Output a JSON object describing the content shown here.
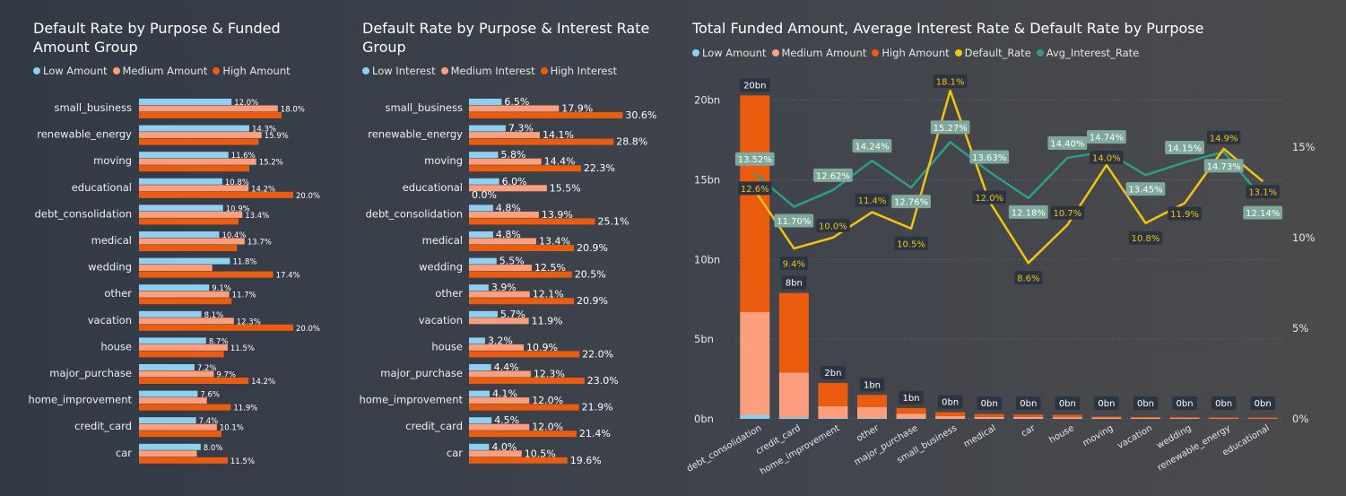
{
  "colors": {
    "low": "#8fd0f0",
    "medium": "#fc9f7e",
    "high": "#eb5c0f",
    "default_rate": "#f2c40f",
    "avg_interest": "#2d9d88",
    "label_box": "#2b3440",
    "interest_box": "#7fa89c"
  },
  "chart_data": [
    {
      "type": "bar",
      "orientation": "horizontal",
      "title": "Default Rate by Purpose & Funded Amount Group",
      "categories": [
        "small_business",
        "renewable_energy",
        "moving",
        "educational",
        "debt_consolidation",
        "medical",
        "wedding",
        "other",
        "vacation",
        "house",
        "major_purchase",
        "home_improvement",
        "credit_card",
        "car"
      ],
      "series": [
        {
          "name": "Low Amount",
          "values": [
            12.0,
            14.3,
            11.6,
            10.8,
            10.9,
            10.4,
            11.8,
            9.1,
            8.1,
            8.7,
            7.2,
            7.6,
            7.4,
            8.0
          ],
          "labels": [
            "12.0%",
            "14.3%",
            "11.6%",
            "10.8%",
            "10.9%",
            "10.4%",
            "11.8%",
            "9.1%",
            "8.1%",
            "8.7%",
            "7.2%",
            "7.6%",
            "7.4%",
            "8.0%"
          ]
        },
        {
          "name": "Medium Amount",
          "values": [
            18.0,
            15.9,
            15.2,
            14.2,
            13.4,
            13.7,
            9.5,
            11.7,
            12.3,
            11.5,
            9.7,
            8.8,
            10.1,
            7.5
          ],
          "labels": [
            "18.0%",
            "15.9%",
            "15.2%",
            "14.2%",
            "13.4%",
            "13.7%",
            "",
            "11.7%",
            "12.3%",
            "11.5%",
            "9.7%",
            "",
            "10.1%",
            ""
          ]
        },
        {
          "name": "High Amount",
          "values": [
            18.5,
            15.5,
            14.3,
            20.0,
            12.9,
            12.7,
            17.4,
            12.0,
            20.0,
            11.0,
            14.2,
            11.9,
            10.7,
            11.5
          ],
          "labels": [
            "",
            "",
            "",
            "20.0%",
            "",
            "",
            "17.4%",
            "",
            "20.0%",
            "",
            "14.2%",
            "11.9%",
            "",
            "11.5%"
          ]
        }
      ]
    },
    {
      "type": "bar",
      "orientation": "horizontal",
      "title": "Default Rate by Purpose & Interest Rate Group",
      "categories": [
        "small_business",
        "renewable_energy",
        "moving",
        "educational",
        "debt_consolidation",
        "medical",
        "wedding",
        "other",
        "vacation",
        "house",
        "major_purchase",
        "home_improvement",
        "credit_card",
        "car"
      ],
      "series": [
        {
          "name": "Low Interest",
          "values": [
            6.5,
            7.3,
            5.8,
            6.0,
            4.8,
            4.8,
            5.5,
            3.9,
            5.7,
            3.2,
            4.4,
            4.1,
            4.5,
            4.0
          ],
          "labels": [
            "6.5%",
            "7.3%",
            "5.8%",
            "6.0%",
            "4.8%",
            "4.8%",
            "5.5%",
            "3.9%",
            "5.7%",
            "3.2%",
            "4.4%",
            "4.1%",
            "4.5%",
            "4.0%"
          ]
        },
        {
          "name": "Medium Interest",
          "values": [
            17.9,
            14.1,
            14.4,
            15.5,
            13.9,
            13.4,
            12.5,
            12.1,
            11.9,
            10.9,
            12.3,
            12.0,
            12.0,
            10.5
          ],
          "labels": [
            "17.9%",
            "14.1%",
            "14.4%",
            "15.5%",
            "13.9%",
            "13.4%",
            "12.5%",
            "12.1%",
            "11.9%",
            "10.9%",
            "12.3%",
            "12.0%",
            "12.0%",
            "10.5%"
          ]
        },
        {
          "name": "High Interest",
          "values": [
            30.6,
            28.8,
            22.3,
            0.0,
            25.1,
            20.9,
            20.5,
            20.9,
            "",
            22.0,
            23.0,
            21.9,
            21.4,
            19.6
          ],
          "labels": [
            "30.6%",
            "28.8%",
            "22.3%",
            "0.0%",
            "25.1%",
            "20.9%",
            "20.5%",
            "20.9%",
            "",
            "22.0%",
            "23.0%",
            "21.9%",
            "21.4%",
            "19.6%"
          ]
        }
      ]
    },
    {
      "type": "bar+line",
      "title": "Total Funded Amount, Average Interest Rate & Default Rate by Purpose",
      "categories": [
        "debt_consolidation",
        "credit_card",
        "home_improvement",
        "other",
        "major_purchase",
        "small_business",
        "medical",
        "car",
        "house",
        "moving",
        "vacation",
        "wedding",
        "renewable_energy",
        "educational"
      ],
      "legend": [
        "Low Amount",
        "Medium Amount",
        "High Amount",
        "Default_Rate",
        "Avg_Interest_Rate"
      ],
      "y_ticks": [
        "0bn",
        "5bn",
        "10bn",
        "15bn",
        "20bn"
      ],
      "ylim": [
        0,
        21.5
      ],
      "y2_ticks": [
        "0%",
        "5%",
        "10%",
        "15%"
      ],
      "y2lim": [
        0,
        18.9
      ],
      "stacks": [
        {
          "low": 0.25,
          "medium": 6.45,
          "high": 13.6
        },
        {
          "low": 0.1,
          "medium": 2.8,
          "high": 5.0
        },
        {
          "low": 0.05,
          "medium": 0.75,
          "high": 1.45
        },
        {
          "low": 0.05,
          "medium": 0.7,
          "high": 0.75
        },
        {
          "low": 0.03,
          "medium": 0.3,
          "high": 0.35
        },
        {
          "low": 0.02,
          "medium": 0.15,
          "high": 0.25
        },
        {
          "low": 0.02,
          "medium": 0.1,
          "high": 0.18
        },
        {
          "low": 0.02,
          "medium": 0.1,
          "high": 0.15
        },
        {
          "low": 0.02,
          "medium": 0.08,
          "high": 0.15
        },
        {
          "low": 0.02,
          "medium": 0.05,
          "high": 0.07
        },
        {
          "low": 0.01,
          "medium": 0.04,
          "high": 0.06
        },
        {
          "low": 0.01,
          "medium": 0.03,
          "high": 0.04
        },
        {
          "low": 0.0,
          "medium": 0.02,
          "high": 0.02
        },
        {
          "low": 0.0,
          "medium": 0.01,
          "high": 0.01
        }
      ],
      "total_labels": [
        "20bn",
        "8bn",
        "2bn",
        "1bn",
        "1bn",
        "0bn",
        "0bn",
        "0bn",
        "0bn",
        "0bn",
        "0bn",
        "0bn",
        "0bn",
        "0bn"
      ],
      "default_rate": [
        12.6,
        9.4,
        10.0,
        11.4,
        10.5,
        18.1,
        12.0,
        8.6,
        10.7,
        14.0,
        10.8,
        11.9,
        14.9,
        13.1
      ],
      "default_rate_labels": [
        "12.6%",
        "9.4%",
        "10.0%",
        "11.4%",
        "10.5%",
        "18.1%",
        "12.0%",
        "8.6%",
        "10.7%",
        "14.0%",
        "10.8%",
        "11.9%",
        "14.9%",
        "13.1%"
      ],
      "avg_interest_rate": [
        13.52,
        11.7,
        12.62,
        14.24,
        12.76,
        15.27,
        13.63,
        12.18,
        14.4,
        14.74,
        13.45,
        14.15,
        14.73,
        12.14
      ],
      "avg_interest_labels": [
        "13.52%",
        "11.70%",
        "12.62%",
        "14.24%",
        "12.76%",
        "15.27%",
        "13.63%",
        "12.18%",
        "14.40%",
        "14.74%",
        "13.45%",
        "14.15%",
        "14.73%",
        "12.14%"
      ]
    }
  ]
}
